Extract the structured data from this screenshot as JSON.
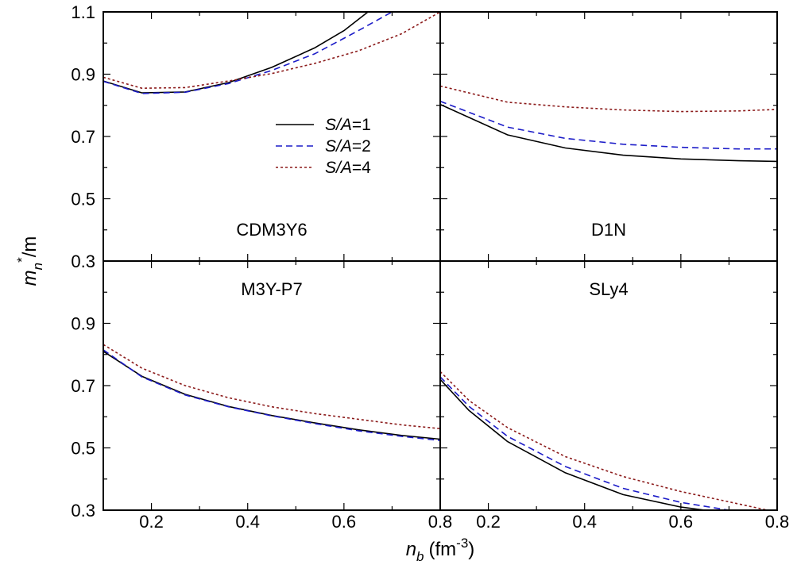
{
  "chart_data": {
    "type": "line",
    "ylabel": {
      "base": "m",
      "sub": "n",
      "sup": "*",
      "rest": "/m"
    },
    "xlabel": {
      "base": "n",
      "sub": "b",
      "unit": "(fm",
      "unit_sup": "-3",
      "unit_close": ")"
    },
    "ylim": [
      0.3,
      1.1
    ],
    "xlim": [
      0.1,
      0.8
    ],
    "y_ticks": [
      "0.3",
      "0.5",
      "0.7",
      "0.9",
      "1.1"
    ],
    "y_ticks_lower": [
      "0.3",
      "0.5",
      "0.7",
      "0.9"
    ],
    "x_ticks": [
      "0.2",
      "0.4",
      "0.6",
      "0.8"
    ],
    "legend": {
      "placement": "top-left panel, center",
      "entries": [
        {
          "italic": "S/A",
          "rest": "=1",
          "color": "#000000",
          "style": "solid"
        },
        {
          "italic": "S/A",
          "rest": "=2",
          "color": "#1c1cc8",
          "style": "dashed"
        },
        {
          "italic": "S/A",
          "rest": "=4",
          "color": "#8b1a1a",
          "style": "dotted"
        }
      ]
    },
    "panels": [
      {
        "name": "CDM3Y6",
        "series": [
          {
            "entry": 0,
            "x": [
              0.1,
              0.18,
              0.27,
              0.36,
              0.45,
              0.54,
              0.6,
              0.65
            ],
            "y": [
              0.878,
              0.84,
              0.843,
              0.873,
              0.922,
              0.985,
              1.04,
              1.1
            ]
          },
          {
            "entry": 1,
            "x": [
              0.1,
              0.18,
              0.27,
              0.36,
              0.45,
              0.54,
              0.63,
              0.7
            ],
            "y": [
              0.877,
              0.838,
              0.842,
              0.87,
              0.912,
              0.966,
              1.04,
              1.1
            ]
          },
          {
            "entry": 2,
            "x": [
              0.1,
              0.18,
              0.27,
              0.36,
              0.45,
              0.54,
              0.63,
              0.72,
              0.8
            ],
            "y": [
              0.89,
              0.855,
              0.857,
              0.878,
              0.902,
              0.935,
              0.975,
              1.03,
              1.1
            ]
          }
        ]
      },
      {
        "name": "D1N",
        "series": [
          {
            "entry": 0,
            "x": [
              0.1,
              0.24,
              0.36,
              0.48,
              0.6,
              0.72,
              0.8
            ],
            "y": [
              0.803,
              0.705,
              0.663,
              0.64,
              0.628,
              0.622,
              0.62
            ]
          },
          {
            "entry": 1,
            "x": [
              0.1,
              0.24,
              0.36,
              0.48,
              0.6,
              0.72,
              0.8
            ],
            "y": [
              0.813,
              0.73,
              0.694,
              0.675,
              0.665,
              0.66,
              0.66
            ]
          },
          {
            "entry": 2,
            "x": [
              0.1,
              0.24,
              0.36,
              0.48,
              0.6,
              0.72,
              0.8
            ],
            "y": [
              0.862,
              0.81,
              0.795,
              0.785,
              0.78,
              0.782,
              0.787
            ]
          }
        ]
      },
      {
        "name": "M3Y-P7",
        "series": [
          {
            "entry": 0,
            "x": [
              0.1,
              0.18,
              0.27,
              0.36,
              0.45,
              0.54,
              0.63,
              0.72,
              0.8
            ],
            "y": [
              0.81,
              0.73,
              0.672,
              0.633,
              0.604,
              0.58,
              0.558,
              0.54,
              0.528
            ]
          },
          {
            "entry": 1,
            "x": [
              0.1,
              0.18,
              0.27,
              0.36,
              0.45,
              0.54,
              0.63,
              0.72,
              0.8
            ],
            "y": [
              0.815,
              0.728,
              0.67,
              0.632,
              0.603,
              0.578,
              0.555,
              0.537,
              0.524
            ]
          },
          {
            "entry": 2,
            "x": [
              0.1,
              0.18,
              0.27,
              0.36,
              0.45,
              0.54,
              0.63,
              0.72,
              0.8
            ],
            "y": [
              0.832,
              0.756,
              0.7,
              0.661,
              0.632,
              0.61,
              0.592,
              0.574,
              0.562
            ]
          }
        ]
      },
      {
        "name": "SLy4",
        "series": [
          {
            "entry": 0,
            "x": [
              0.1,
              0.16,
              0.24,
              0.36,
              0.48,
              0.6,
              0.65
            ],
            "y": [
              0.72,
              0.62,
              0.52,
              0.42,
              0.35,
              0.31,
              0.3
            ]
          },
          {
            "entry": 1,
            "x": [
              0.1,
              0.16,
              0.24,
              0.36,
              0.48,
              0.6,
              0.7
            ],
            "y": [
              0.728,
              0.633,
              0.537,
              0.44,
              0.37,
              0.325,
              0.3
            ]
          },
          {
            "entry": 2,
            "x": [
              0.1,
              0.16,
              0.24,
              0.36,
              0.48,
              0.6,
              0.72,
              0.78
            ],
            "y": [
              0.745,
              0.652,
              0.565,
              0.472,
              0.408,
              0.36,
              0.32,
              0.3
            ]
          }
        ]
      }
    ]
  }
}
